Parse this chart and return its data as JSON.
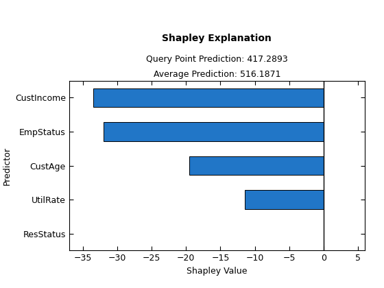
{
  "title": "Shapley Explanation",
  "subtitle1": "Query Point Prediction: 417.2893",
  "subtitle2": "Average Prediction: 516.1871",
  "xlabel": "Shapley Value",
  "ylabel": "Predictor",
  "categories": [
    "ResStatus",
    "UtilRate",
    "CustAge",
    "EmpStatus",
    "CustIncome"
  ],
  "values": [
    0.0,
    -11.5,
    -19.5,
    -32.0,
    -33.5
  ],
  "bar_color": "#2176c7",
  "bar_edge_color": "#000000",
  "xlim": [
    -37,
    6
  ],
  "xticks": [
    -35,
    -30,
    -25,
    -20,
    -15,
    -10,
    -5,
    0,
    5
  ],
  "background_color": "#ffffff",
  "vline_x": 0,
  "bar_height": 0.55,
  "title_fontsize": 10,
  "subtitle_fontsize": 9,
  "label_fontsize": 9,
  "tick_fontsize": 9
}
